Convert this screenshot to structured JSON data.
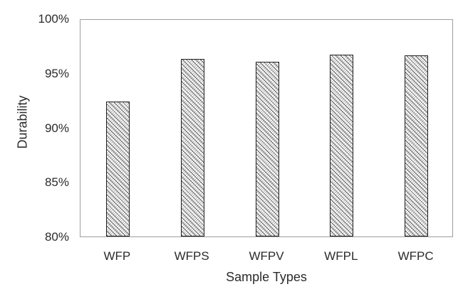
{
  "chart_data": {
    "type": "bar",
    "title": "",
    "categories": [
      "WFP",
      "WFPS",
      "WFPV",
      "WFPL",
      "WFPC"
    ],
    "values": [
      92.4,
      96.3,
      96.0,
      96.7,
      96.6
    ],
    "xlabel": "Sample Types",
    "ylabel": "Durability",
    "ylim": [
      80,
      100
    ],
    "yticks": [
      80,
      85,
      90,
      95,
      100
    ],
    "ytick_suffix": "%",
    "grid": false,
    "legend": false,
    "bar_style": {
      "fill": "dotted-diagonal-hatch",
      "fill_light": "#cccccc",
      "fill_dot": "#1f1f1f",
      "outline": "#1f1f1f"
    },
    "axis_color": "#9e9e9e",
    "text_color": "#2b2b2b"
  }
}
